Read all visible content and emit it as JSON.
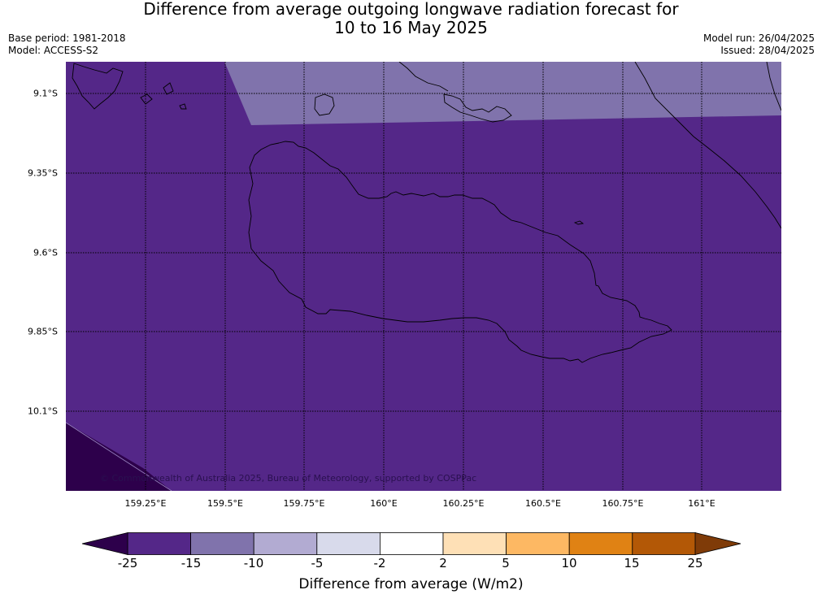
{
  "title": {
    "line1": "Difference from average outgoing longwave radiation forecast for",
    "line2": "10 to 16 May 2025"
  },
  "meta": {
    "base_period": "Base period: 1981-2018",
    "model": "Model: ACCESS-S2",
    "model_run": "Model run: 26/04/2025",
    "issued": "Issued: 28/04/2025"
  },
  "map": {
    "lat_labels": [
      "9.1°S",
      "9.35°S",
      "9.6°S",
      "9.85°S",
      "10.1°S"
    ],
    "lon_labels": [
      "159.25°E",
      "159.5°E",
      "159.75°E",
      "160°E",
      "160.25°E",
      "160.5°E",
      "160.75°E",
      "161°E"
    ],
    "copyright": "© Commonwealth of Australia 2025, Bureau of Meteorology, supported by COSPPac",
    "regions": [
      {
        "name": "main field",
        "range": "-25 to -15",
        "color": "#542788"
      },
      {
        "name": "north band",
        "range": "-15 to -10",
        "color": "#8073ac"
      },
      {
        "name": "south-west corner",
        "range": "below -25",
        "color": "#2d004b"
      }
    ]
  },
  "colorbar": {
    "label": "Difference from average (W/m2)",
    "ticks": [
      "-25",
      "-15",
      "-10",
      "-5",
      "-2",
      "2",
      "5",
      "10",
      "15",
      "25"
    ],
    "under_color": "#2d004b",
    "over_color": "#7f3b08",
    "colors": [
      "#542788",
      "#8073ac",
      "#b2abd2",
      "#d8daeb",
      "#ffffff",
      "#fee0b6",
      "#fdb863",
      "#e08214",
      "#b35806"
    ]
  }
}
